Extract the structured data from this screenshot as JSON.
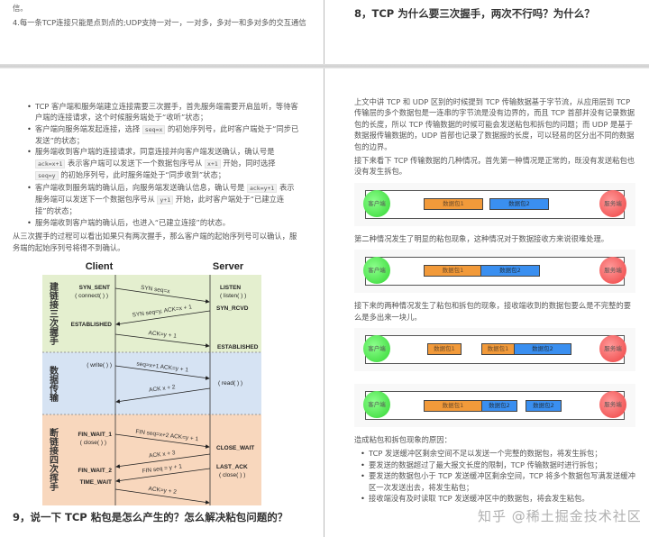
{
  "left_page": {
    "top_fragment": "信。",
    "point4": "4.每一条TCP连接只能是点到点的;UDP支持一对一，一对多，多对一和多对多的交互通信",
    "bullets": [
      {
        "a": "TCP 客户端和服务端建立连接需要三次握手，首先服务端需要开启监听，等待客户端的连接请求，这个时候服务端处于“收听”状态；"
      },
      {
        "a": "客户端向服务端发起连接，选择 ",
        "c1": "seq=x",
        "b": " 的初始序列号，此时客户端处于“同步已发送”的状态；"
      },
      {
        "a": "服务端收到客户端的连接请求，同意连接并向客户端发送确认，确认号是 ",
        "c1": "ack=x+1",
        "b": " 表示客户端可以发送下一个数据包序号从 ",
        "c2": "x+1",
        "c": " 开始，同时选择 ",
        "c3": "seq=y",
        "d": " 的初始序列号，此时服务端处于“同步收到”状态；"
      },
      {
        "a": "客户端收到服务端的确认后，向服务端发送确认信息，确认号是 ",
        "c1": "ack=y+1",
        "b": " 表示服务端可以发送下一个数据包序号从 ",
        "c2": "y+1",
        "c": " 开始，此时客户端处于“已建立连接”的状态；"
      },
      {
        "a": "服务端收到客户端的确认后，也进入“已建立连接”的状态。"
      }
    ],
    "conclusion": "从三次握手的过程可以看出如果只有两次握手，那么客户端的起始序列号可以确认，服务端的起始序列号将得不到确认。",
    "diagram": {
      "client": "Client",
      "server": "Server",
      "phase_labels": [
        "建链接三次握手",
        "数据传输",
        "断链接四次挥手"
      ],
      "client_states": [
        "SYN_SENT",
        "( connect( ) )",
        "ESTABLISHED",
        "( write( ) )",
        "FIN_WAIT_1",
        "( close( ) )",
        "FIN_WAIT_2",
        "TIME_WAIT"
      ],
      "server_states": [
        "LISTEN",
        "( listen( ) )",
        "SYN_RCVD",
        "ESTABLISHED",
        "( read( ) )",
        "CLOSE_WAIT",
        "LAST_ACK",
        "( close( ) )"
      ],
      "messages": [
        "SYN seq=x",
        "SYN seq=y, ACK=x + 1",
        "ACK=y + 1",
        "seq=x+1 ACK=y + 1",
        "ACK x + 2",
        "FIN seq=x+2 ACK=y + 1",
        "ACK x + 3",
        "FIN seq = y + 1",
        "ACK=y + 2"
      ],
      "colors": {
        "handshake": "#e4efcf",
        "transfer": "#d6e3f3",
        "teardown": "#f8d7bd"
      }
    },
    "heading9": "9，说一下 TCP 粘包是怎么产生的？怎么解决粘包问题的？"
  },
  "right_page": {
    "heading8": "8，TCP 为什么要三次握手，两次不行吗？为什么？",
    "para1": "上文中讲 TCP 和 UDP 区别的时候提到 TCP 传输数据基于字节流，从应用层到 TCP 传输层的多个数据包是一连串的字节流是没有边界的，而且 TCP 首部并没有记录数据包的长度，所以 TCP 传输数据的时候可能会发送粘包和拆包的问题；而 UDP 是基于数据报传输数据的，UDP 首部也记录了数据报的长度，可以轻易的区分出不同的数据包的边界。",
    "para2": "接下来看下 TCP 传输数据的几种情况，首先第一种情况是正常的，既没有发送粘包也没有发生拆包。",
    "para3": "第二种情况发生了明显的粘包现象，这种情况对于数据接收方来说很难处理。",
    "para4": "接下来的两种情况发生了粘包和拆包的现象，接收端收到的数据包要么是不完整的要么是多出来一块儿。",
    "client_label": "客户端",
    "server_label": "服务端",
    "packet1": "数据包1",
    "packet2": "数据包2",
    "causes_title": "造成粘包和拆包现象的原因：",
    "causes": [
      "TCP 发送缓冲区剩余空间不足以发送一个完整的数据包，将发生拆包；",
      "要发送的数据超过了最大报文长度的限制，TCP 传输数据时进行拆包；",
      "要发送的数据包小于 TCP 发送缓冲区剩余空间，TCP 将多个数据包写满发送缓冲区一次发送出去，将发生粘包；",
      "接收端没有及时读取 TCP 发送缓冲区中的数据包，将会发生粘包。"
    ],
    "watermark": "知乎 @稀土掘金技术社区"
  }
}
